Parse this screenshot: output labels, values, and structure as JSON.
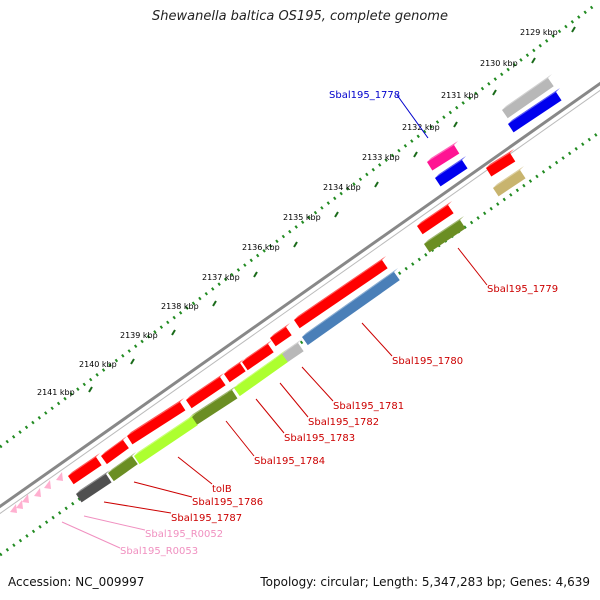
{
  "title": "Shewanella baltica OS195, complete genome",
  "footer": {
    "accession": "Accession: NC_009997",
    "topology": "Topology: circular; Length: 5,347,283 bp; Genes: 4,639"
  },
  "ticks": [
    {
      "label": "2129 kbp"
    },
    {
      "label": "2130 kbp"
    },
    {
      "label": "2131 kbp"
    },
    {
      "label": "2132 kbp"
    },
    {
      "label": "2133 kbp"
    },
    {
      "label": "2134 kbp"
    },
    {
      "label": "2135 kbp"
    },
    {
      "label": "2136 kbp"
    },
    {
      "label": "2137 kbp"
    },
    {
      "label": "2138 kbp"
    },
    {
      "label": "2139 kbp"
    },
    {
      "label": "2140 kbp"
    },
    {
      "label": "2141 kbp"
    }
  ],
  "gene_labels": [
    {
      "label": "Sbal195_1778",
      "color": "#0000cc"
    },
    {
      "label": "Sbal195_1779",
      "color": "#cc0000"
    },
    {
      "label": "Sbal195_1780",
      "color": "#cc0000"
    },
    {
      "label": "Sbal195_1781",
      "color": "#cc0000"
    },
    {
      "label": "Sbal195_1782",
      "color": "#cc0000"
    },
    {
      "label": "Sbal195_1783",
      "color": "#cc0000"
    },
    {
      "label": "Sbal195_1784",
      "color": "#cc0000"
    },
    {
      "label": "tolB",
      "color": "#cc0000"
    },
    {
      "label": "Sbal195_1786",
      "color": "#cc0000"
    },
    {
      "label": "Sbal195_1787",
      "color": "#cc0000"
    },
    {
      "label": "Sbal195_R0052",
      "color": "#f090c0"
    },
    {
      "label": "Sbal195_R0053",
      "color": "#f090c0"
    }
  ],
  "feature_colors": {
    "cds": "#ff0000",
    "cog_blue": "#0000ee",
    "cog_steelblue": "#4a7fb8",
    "cog_grey": "#b8b8b8",
    "cog_olive": "#6b8e23",
    "cog_lime": "#adff2f",
    "cog_khaki": "#c8b46e",
    "cog_magenta": "#ff1493",
    "cog_dark": "#505050",
    "rna": "#ffb0d0",
    "backbone": "#777777",
    "gc_dots": "#228b22"
  }
}
